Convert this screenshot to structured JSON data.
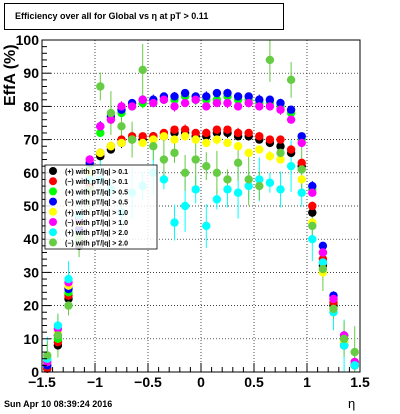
{
  "chart_data": {
    "type": "scatter",
    "title": "Efficiency over all for Global vs   η at pT > 0.11",
    "xlabel": "η",
    "ylabel": "EffA (%)",
    "xlim": [
      -1.5,
      1.5
    ],
    "ylim": [
      0,
      100
    ],
    "x_ticks": [
      "−1.5",
      "−1",
      "−0.5",
      "0",
      "0.5",
      "1",
      "1.5"
    ],
    "y_ticks": [
      "0",
      "10",
      "20",
      "30",
      "40",
      "50",
      "60",
      "70",
      "80",
      "90",
      "100"
    ],
    "grid": true,
    "legend_position": "left",
    "footer": "Sun Apr 10 08:39:24 2016",
    "series": [
      {
        "name": "(+) with pT/|q| > 0.1",
        "color": "#000000",
        "x": [
          -1.45,
          -1.35,
          -1.25,
          -1.15,
          -1.05,
          -0.95,
          -0.85,
          -0.75,
          -0.65,
          -0.55,
          -0.45,
          -0.35,
          -0.25,
          -0.15,
          -0.05,
          0.05,
          0.15,
          0.25,
          0.35,
          0.45,
          0.55,
          0.65,
          0.75,
          0.85,
          0.95,
          1.05,
          1.15,
          1.25,
          1.35,
          1.45
        ],
        "y": [
          1,
          8,
          22,
          38,
          55,
          65,
          67,
          69,
          70,
          70,
          71,
          71,
          72,
          72,
          71,
          71,
          72,
          72,
          71,
          71,
          70,
          69,
          68,
          66,
          62,
          48,
          32,
          20,
          8,
          2
        ]
      },
      {
        "name": "(−) with pT/|q| > 0.1",
        "color": "#ff0000",
        "x": [
          -1.45,
          -1.35,
          -1.25,
          -1.15,
          -1.05,
          -0.95,
          -0.85,
          -0.75,
          -0.65,
          -0.55,
          -0.45,
          -0.35,
          -0.25,
          -0.15,
          -0.05,
          0.05,
          0.15,
          0.25,
          0.35,
          0.45,
          0.55,
          0.65,
          0.75,
          0.85,
          0.95,
          1.05,
          1.15,
          1.25,
          1.35,
          1.45
        ],
        "y": [
          1,
          9,
          23,
          40,
          56,
          66,
          68,
          70,
          71,
          71,
          71,
          72,
          73,
          73,
          72,
          72,
          73,
          73,
          72,
          72,
          71,
          70,
          70,
          67,
          63,
          50,
          34,
          21,
          9,
          2
        ]
      },
      {
        "name": "(+) with pT/|q| > 0.5",
        "color": "#00ff00",
        "x": [
          -1.45,
          -1.35,
          -1.25,
          -1.15,
          -1.05,
          -0.95,
          -0.85,
          -0.75,
          -0.65,
          -0.55,
          -0.45,
          -0.35,
          -0.25,
          -0.15,
          -0.05,
          0.05,
          0.15,
          0.25,
          0.35,
          0.45,
          0.55,
          0.65,
          0.75,
          0.85,
          0.95,
          1.05,
          1.15,
          1.25,
          1.35,
          1.45
        ],
        "y": [
          2,
          10,
          24,
          42,
          62,
          72,
          76,
          78,
          80,
          81,
          81,
          82,
          82,
          83,
          82,
          82,
          82,
          83,
          82,
          82,
          81,
          81,
          80,
          78,
          70,
          55,
          36,
          22,
          10,
          3
        ]
      },
      {
        "name": "(−) with pT/|q| > 0.5",
        "color": "#0000ff",
        "x": [
          -1.45,
          -1.35,
          -1.25,
          -1.15,
          -1.05,
          -0.95,
          -0.85,
          -0.75,
          -0.65,
          -0.55,
          -0.45,
          -0.35,
          -0.25,
          -0.15,
          -0.05,
          0.05,
          0.15,
          0.25,
          0.35,
          0.45,
          0.55,
          0.65,
          0.75,
          0.85,
          0.95,
          1.05,
          1.15,
          1.25,
          1.35,
          1.45
        ],
        "y": [
          2,
          11,
          25,
          43,
          63,
          74,
          77,
          79,
          81,
          82,
          82,
          83,
          83,
          84,
          83,
          83,
          84,
          84,
          83,
          83,
          82,
          82,
          81,
          79,
          71,
          56,
          38,
          23,
          11,
          3
        ]
      },
      {
        "name": "(+) with pT/|q| > 1.0",
        "color": "#ffff00",
        "x": [
          -1.45,
          -1.35,
          -1.25,
          -1.15,
          -1.05,
          -0.95,
          -0.85,
          -0.75,
          -0.65,
          -0.55,
          -0.45,
          -0.35,
          -0.25,
          -0.15,
          -0.05,
          0.05,
          0.15,
          0.25,
          0.35,
          0.45,
          0.55,
          0.65,
          0.75,
          0.85,
          0.95,
          1.05,
          1.15,
          1.25,
          1.35,
          1.45
        ],
        "y": [
          3,
          12,
          26,
          45,
          60,
          66,
          68,
          69,
          70,
          69,
          70,
          71,
          70,
          71,
          70,
          69,
          70,
          69,
          68,
          66,
          67,
          65,
          64,
          62,
          58,
          45,
          30,
          19,
          9,
          3
        ]
      },
      {
        "name": "(−) with pT/|q| > 1.0",
        "color": "#ff00ff",
        "x": [
          -1.45,
          -1.35,
          -1.25,
          -1.15,
          -1.05,
          -0.95,
          -0.85,
          -0.75,
          -0.65,
          -0.55,
          -0.45,
          -0.35,
          -0.25,
          -0.15,
          -0.05,
          0.05,
          0.15,
          0.25,
          0.35,
          0.45,
          0.55,
          0.65,
          0.75,
          0.85,
          0.95,
          1.05,
          1.15,
          1.25,
          1.35,
          1.45
        ],
        "y": [
          3,
          13,
          27,
          46,
          64,
          74,
          76,
          80,
          80,
          82,
          81,
          82,
          80,
          81,
          82,
          80,
          81,
          81,
          80,
          81,
          80,
          80,
          79,
          76,
          69,
          54,
          36,
          22,
          11,
          3
        ]
      },
      {
        "name": "(+) with pT/|q| > 2.0",
        "color": "#00ffff",
        "x": [
          -1.45,
          -1.35,
          -1.25,
          -1.15,
          -1.05,
          -0.95,
          -0.85,
          -0.75,
          -0.65,
          -0.55,
          -0.45,
          -0.35,
          -0.25,
          -0.15,
          -0.05,
          0.05,
          0.15,
          0.25,
          0.35,
          0.45,
          0.55,
          0.65,
          0.75,
          0.85,
          0.95,
          1.05,
          1.15,
          1.25,
          1.35,
          1.45
        ],
        "y": [
          4,
          14,
          28,
          47,
          58,
          58,
          55,
          48,
          54,
          56,
          60,
          58,
          45,
          50,
          55,
          44,
          52,
          55,
          54,
          56,
          58,
          57,
          55,
          62,
          54,
          40,
          33,
          18,
          8,
          2
        ]
      },
      {
        "name": "(−) with pT/|q| > 2.0",
        "color": "#66cc44",
        "x": [
          -1.45,
          -1.35,
          -1.25,
          -1.15,
          -1.05,
          -0.95,
          -0.85,
          -0.75,
          -0.65,
          -0.55,
          -0.45,
          -0.35,
          -0.25,
          -0.15,
          -0.05,
          0.05,
          0.15,
          0.25,
          0.35,
          0.45,
          0.55,
          0.65,
          0.75,
          0.85,
          0.95,
          1.05,
          1.15,
          1.25,
          1.35,
          1.45
        ],
        "y": [
          5,
          11,
          20,
          40,
          55,
          86,
          78,
          74,
          70,
          91,
          68,
          64,
          66,
          60,
          64,
          62,
          60,
          58,
          63,
          58,
          56,
          94,
          66,
          88,
          61,
          44,
          31,
          19,
          10,
          6
        ]
      }
    ]
  }
}
